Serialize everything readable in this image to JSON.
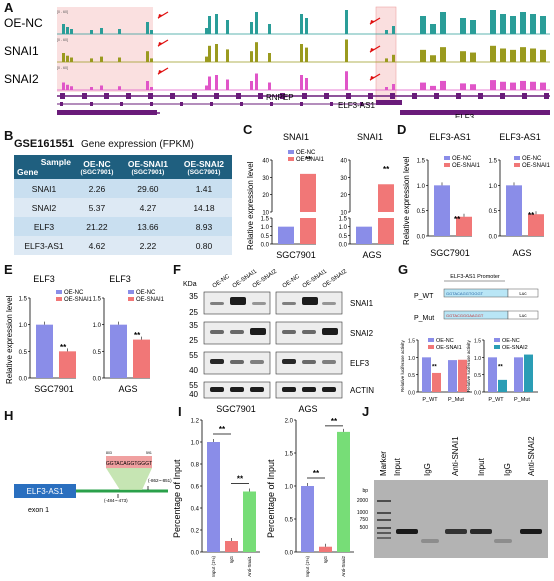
{
  "panels": {
    "A": {
      "label": "A",
      "tracks": [
        "OE-NC",
        "SNAI1",
        "SNAI2"
      ],
      "track_colors": [
        "#2a9d98",
        "#9a9a1f",
        "#e055c8"
      ],
      "genes": [
        "RNPEP",
        "ELF3-AS1",
        "ELF3"
      ],
      "scale_label": "[0 - 60]"
    },
    "B": {
      "label": "B",
      "dataset": "GSE161551",
      "subtitle": "Gene expression (FPKM)",
      "header_sample": "Sample",
      "header_gene": "Gene",
      "columns": [
        {
          "name": "OE-NC",
          "sub": "(SGC7901)"
        },
        {
          "name": "OE-SNAI1",
          "sub": "(SGC7901)"
        },
        {
          "name": "OE-SNAI2",
          "sub": "(SGC7901)"
        }
      ],
      "rows": [
        {
          "gene": "SNAI1",
          "values": [
            "2.26",
            "29.60",
            "1.41"
          ]
        },
        {
          "gene": "SNAI2",
          "values": [
            "5.37",
            "4.27",
            "14.18"
          ]
        },
        {
          "gene": "ELF3",
          "values": [
            "21.22",
            "13.66",
            "8.93"
          ]
        },
        {
          "gene": "ELF3-AS1",
          "values": [
            "4.62",
            "2.22",
            "0.80"
          ]
        }
      ]
    },
    "C": {
      "label": "C"
    },
    "D": {
      "label": "D"
    },
    "E": {
      "label": "E"
    },
    "F": {
      "label": "F",
      "kda_label": "KDa",
      "lanes": [
        "OE-NC",
        "OE-SNAI1",
        "OE-SNAI2"
      ],
      "markers": [
        "35",
        "25",
        "35",
        "25",
        "55",
        "40",
        "55",
        "40"
      ],
      "proteins": [
        "SNAI1",
        "SNAI2",
        "ELF3",
        "ACTIN"
      ],
      "cells": [
        "SGC7901",
        "AGS"
      ]
    },
    "G": {
      "label": "G",
      "promoter_title": "ELF3-AS1 Promoter",
      "constructs": [
        "P_WT",
        "P_Mut"
      ],
      "luc": "Luc",
      "wt_seq": "GGTACAGGTGGGT",
      "mut_seq": "GGTACGGGAAGGT"
    },
    "H": {
      "label": "H",
      "gene": "ELF3-AS1",
      "exon": "exon 1",
      "motif": "GGTACAGGTGGGT",
      "pos1": "(-862~-851)",
      "pos2": "(-484~-473)",
      "motif_left": "803",
      "motif_right": "591"
    },
    "I": {
      "label": "I"
    },
    "J": {
      "label": "J",
      "marker": "Marker",
      "lanes": [
        "Input",
        "IgG",
        "Anti-SNAI1",
        "Input",
        "IgG",
        "Anti-SNAI2"
      ],
      "bp_label": "bp",
      "bp": [
        "2000",
        "1000",
        "750",
        "500"
      ]
    }
  },
  "chart_data": [
    {
      "id": "C-left",
      "type": "bar",
      "title": "SNAI1",
      "xlabel": "SGC7901",
      "ylabel": "Relative expression level",
      "categories": [
        "OE-NC",
        "OE-SNAI1"
      ],
      "values": [
        1.0,
        32
      ],
      "ylim": [
        0,
        40
      ],
      "broken_axis": true,
      "yticks": [
        "0.0",
        "0.5",
        "1.0",
        "1.5",
        "10",
        "20",
        "30",
        "40"
      ],
      "significance": "**",
      "legend": [
        "OE-NC",
        "OE-SNAI1"
      ],
      "colors": [
        "#8a8de8",
        "#f17777"
      ]
    },
    {
      "id": "C-right",
      "type": "bar",
      "title": "SNAI1",
      "xlabel": "AGS",
      "ylabel": "",
      "categories": [
        "OE-NC",
        "OE-SNAI1"
      ],
      "values": [
        1.0,
        26
      ],
      "ylim": [
        0,
        40
      ],
      "broken_axis": true,
      "yticks": [
        "0.0",
        "0.5",
        "1.0",
        "1.5",
        "10",
        "20",
        "30",
        "40"
      ],
      "significance": "**",
      "legend": [
        "OE-NC",
        "OE-SNAI1"
      ],
      "colors": [
        "#8a8de8",
        "#f17777"
      ]
    },
    {
      "id": "D-left",
      "type": "bar",
      "title": "ELF3-AS1",
      "xlabel": "SGC7901",
      "ylabel": "Relative expression level",
      "categories": [
        "OE-NC",
        "OE-SNAI1"
      ],
      "values": [
        1.0,
        0.38
      ],
      "ylim": [
        0,
        1.5
      ],
      "yticks": [
        "0.0",
        "0.5",
        "1.0",
        "1.5"
      ],
      "significance": "**",
      "legend": [
        "OE-NC",
        "OE-SNAI1"
      ],
      "colors": [
        "#8a8de8",
        "#f17777"
      ]
    },
    {
      "id": "D-right",
      "type": "bar",
      "title": "ELF3-AS1",
      "xlabel": "AGS",
      "ylabel": "",
      "categories": [
        "OE-NC",
        "OE-SNAI1"
      ],
      "values": [
        1.0,
        0.43
      ],
      "ylim": [
        0,
        1.5
      ],
      "yticks": [
        "0.0",
        "0.5",
        "1.0",
        "1.5"
      ],
      "significance": "**",
      "legend": [
        "OE-NC",
        "OE-SNAI1"
      ],
      "colors": [
        "#8a8de8",
        "#f17777"
      ]
    },
    {
      "id": "E-left",
      "type": "bar",
      "title": "ELF3",
      "xlabel": "SGC7901",
      "ylabel": "Relative expression level",
      "categories": [
        "OE-NC",
        "OE-SNAI1"
      ],
      "values": [
        1.0,
        0.5
      ],
      "ylim": [
        0,
        1.5
      ],
      "yticks": [
        "0.0",
        "0.5",
        "1.0",
        "1.5"
      ],
      "significance": "**",
      "legend": [
        "OE-NC",
        "OE-SNAI1"
      ],
      "colors": [
        "#8a8de8",
        "#f17777"
      ]
    },
    {
      "id": "E-right",
      "type": "bar",
      "title": "ELF3",
      "xlabel": "AGS",
      "ylabel": "",
      "categories": [
        "OE-NC",
        "OE-SNAI1"
      ],
      "values": [
        1.0,
        0.72
      ],
      "ylim": [
        0,
        1.5
      ],
      "yticks": [
        "0.0",
        "0.5",
        "1.0",
        "1.5"
      ],
      "significance": "**",
      "legend": [
        "OE-NC",
        "OE-SNAI1"
      ],
      "colors": [
        "#8a8de8",
        "#f17777"
      ]
    },
    {
      "id": "G-left",
      "type": "bar",
      "xlabel": "",
      "ylabel": "Relative luciferase activity",
      "categories": [
        "P_WT",
        "P_Mut"
      ],
      "series": [
        {
          "name": "OE-NC",
          "values": [
            1.0,
            0.92
          ]
        },
        {
          "name": "OE-SNAI1",
          "values": [
            0.55,
            0.93
          ]
        }
      ],
      "ylim": [
        0,
        1.5
      ],
      "yticks": [
        "0.0",
        "0.5",
        "1.0",
        "1.5"
      ],
      "significance": "**",
      "colors": [
        "#8a8de8",
        "#f17777"
      ]
    },
    {
      "id": "G-right",
      "type": "bar",
      "xlabel": "",
      "ylabel": "Relative luciferase activity",
      "categories": [
        "P_WT",
        "P_Mut"
      ],
      "series": [
        {
          "name": "OE-NC",
          "values": [
            1.0,
            1.0
          ]
        },
        {
          "name": "OE-SNAI2",
          "values": [
            0.35,
            1.08
          ]
        }
      ],
      "ylim": [
        0,
        1.5
      ],
      "yticks": [
        "0.0",
        "0.5",
        "1.0",
        "1.5"
      ],
      "significance": "**",
      "colors": [
        "#8a8de8",
        "#2a9db5"
      ]
    },
    {
      "id": "I-left",
      "type": "bar",
      "xlabel": "",
      "ylabel": "Percentage of Input",
      "categories": [
        "Input (1%)",
        "IgG",
        "Anti-Snai1"
      ],
      "values": [
        1.0,
        0.1,
        0.55
      ],
      "ylim": [
        0,
        1.2
      ],
      "yticks": [
        "0.0",
        "0.2",
        "0.4",
        "0.6",
        "0.8",
        "1.0",
        "1.2"
      ],
      "significance": "**",
      "colors": [
        "#8a8de8",
        "#f17777",
        "#77dd77"
      ]
    },
    {
      "id": "I-right",
      "type": "bar",
      "xlabel": "",
      "ylabel": "Percentage of Input",
      "categories": [
        "Input (1%)",
        "IgG",
        "Anti-Snai2"
      ],
      "values": [
        1.0,
        0.08,
        1.82
      ],
      "ylim": [
        0,
        2.0
      ],
      "yticks": [
        "0.0",
        "0.5",
        "1.0",
        "1.5",
        "2.0"
      ],
      "significance": "**",
      "colors": [
        "#8a8de8",
        "#f17777",
        "#77dd77"
      ]
    }
  ]
}
